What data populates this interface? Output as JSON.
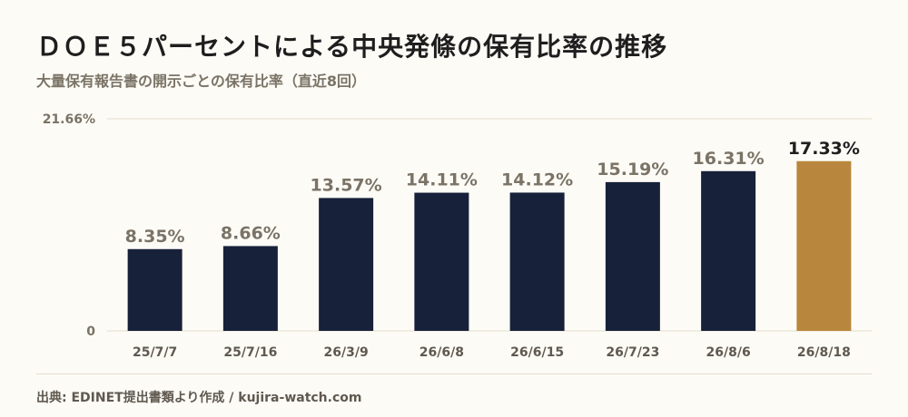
{
  "title": "ＤＯＥ５パーセントによる中央発條の保有比率の推移",
  "subtitle": "大量保有報告書の開示ごとの保有比率（直近8回）",
  "footer": "出典: EDINET提出書類より作成 / kujira-watch.com",
  "colors": {
    "bar": "#17213a",
    "highlight": "#b8873d",
    "label": "#7a7366",
    "highlight_label": "#1e1e1e"
  },
  "chart_data": {
    "type": "bar",
    "categories": [
      "25/7/7",
      "25/7/16",
      "26/3/9",
      "26/6/8",
      "26/6/15",
      "26/7/23",
      "26/8/6",
      "26/8/18"
    ],
    "values": [
      8.35,
      8.66,
      13.57,
      14.11,
      14.12,
      15.19,
      16.31,
      17.33
    ],
    "data_labels": [
      "8.35%",
      "8.66%",
      "13.57%",
      "14.11%",
      "14.12%",
      "15.19%",
      "16.31%",
      "17.33%"
    ],
    "ylim": [
      0,
      21.66
    ],
    "y_tick_labels": [
      "0",
      "21.66%"
    ],
    "highlight_index": 7,
    "grid": true
  }
}
